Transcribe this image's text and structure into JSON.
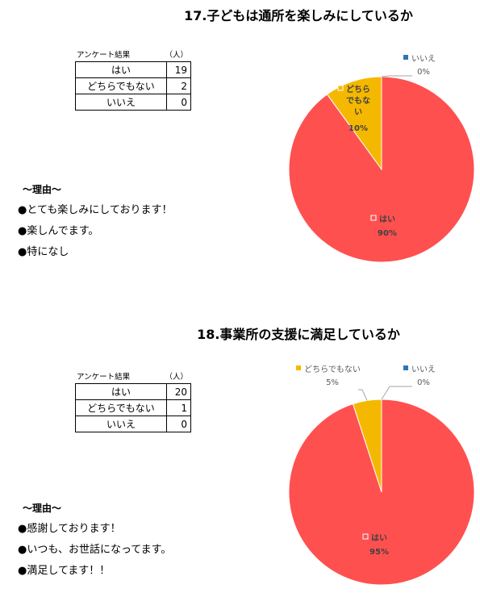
{
  "sections": [
    {
      "title": "17.子どもは通所を楽しみにしているか",
      "survey_label": "アンケート結果",
      "unit": "（人）",
      "rows": [
        {
          "label": "はい",
          "value": "19"
        },
        {
          "label": "どちらでもない",
          "value": "2"
        },
        {
          "label": "いいえ",
          "value": "0"
        }
      ],
      "reasons_title": "〜理由〜",
      "reasons": [
        "●とても楽しみにしております！",
        "●楽しんでます。",
        "●特になし"
      ]
    },
    {
      "title": "18.事業所の支援に満足しているか",
      "survey_label": "アンケート結果",
      "unit": "（人）",
      "rows": [
        {
          "label": "はい",
          "value": "20"
        },
        {
          "label": "どちらでもない",
          "value": "1"
        },
        {
          "label": "いいえ",
          "value": "0"
        }
      ],
      "reasons_title": "〜理由〜",
      "reasons": [
        "●感謝しております！",
        "●いつも、お世話になってます。",
        "●満足してます！！"
      ]
    }
  ],
  "chart_data": [
    {
      "type": "pie",
      "title": "17.子どもは通所を楽しみにしているか",
      "categories": [
        "はい",
        "どちらでもない",
        "いいえ"
      ],
      "values": [
        90,
        10,
        0
      ],
      "labels": [
        {
          "name": "はい",
          "pct": "90%"
        },
        {
          "name": "どちらでもない",
          "pct": "10%"
        },
        {
          "name": "いいえ",
          "pct": "0%"
        }
      ],
      "colors": [
        "#FF5050",
        "#F5B800",
        "#2E75B6"
      ]
    },
    {
      "type": "pie",
      "title": "18.事業所の支援に満足しているか",
      "categories": [
        "はい",
        "どちらでもない",
        "いいえ"
      ],
      "values": [
        95,
        5,
        0
      ],
      "labels": [
        {
          "name": "はい",
          "pct": "95%"
        },
        {
          "name": "どちらでもない",
          "pct": "5%"
        },
        {
          "name": "いいえ",
          "pct": "0%"
        }
      ],
      "colors": [
        "#FF5050",
        "#F5B800",
        "#2E75B6"
      ]
    }
  ]
}
